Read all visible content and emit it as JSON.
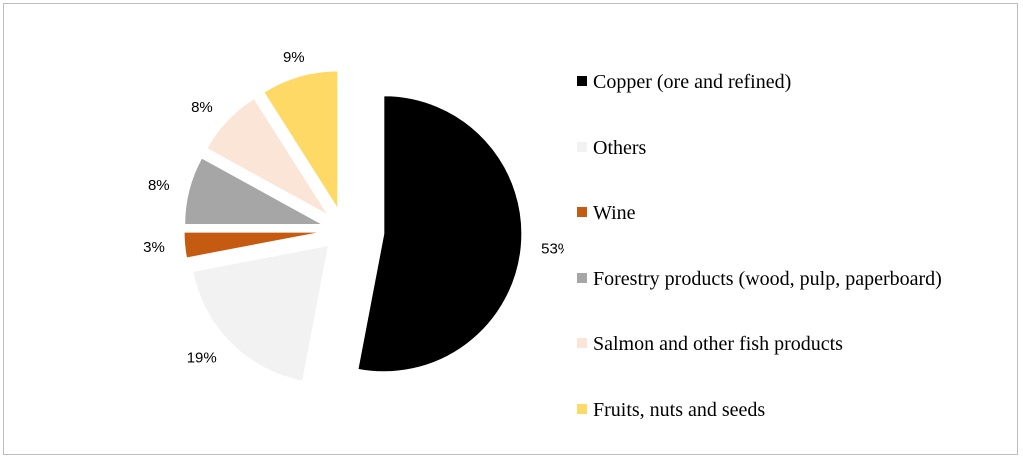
{
  "chart_data": {
    "type": "pie",
    "exploded": true,
    "legend_position": "right",
    "slices": [
      {
        "label": "Copper (ore and refined)",
        "value": 53,
        "display": "53%",
        "color": "#000000"
      },
      {
        "label": "Others",
        "value": 19,
        "display": "19%",
        "color": "#f2f2f2"
      },
      {
        "label": "Wine",
        "value": 3,
        "display": "3%",
        "color": "#c55a11"
      },
      {
        "label": "Forestry products (wood, pulp, paperboard)",
        "value": 8,
        "display": "8%",
        "color": "#a6a6a6"
      },
      {
        "label": "Salmon and other fish products",
        "value": 8,
        "display": "8%",
        "color": "#fbe5d6"
      },
      {
        "label": "Fruits, nuts and seeds",
        "value": 9,
        "display": "9%",
        "color": "#ffd966"
      }
    ]
  }
}
